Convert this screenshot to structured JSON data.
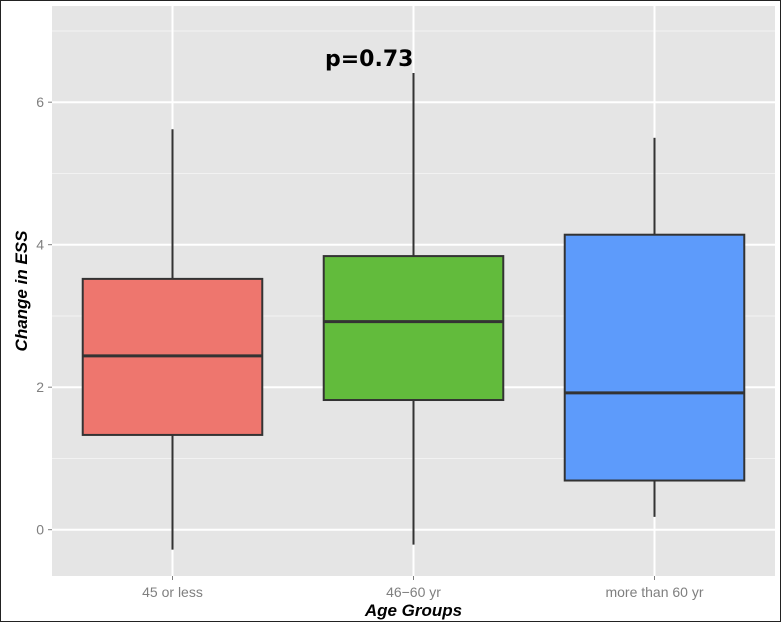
{
  "chart_data": {
    "type": "box",
    "xlabel": "Age Groups",
    "ylabel": "Change in ESS",
    "ylim": [
      -0.65,
      7.35
    ],
    "yticks": [
      0,
      2,
      4,
      6
    ],
    "grid": true,
    "annotation": "p=0.73",
    "categories": [
      "45 or less",
      "46−60 yr",
      "more than 60 yr"
    ],
    "boxes": [
      {
        "category": "45 or less",
        "min": -0.28,
        "q1": 1.33,
        "median": 2.44,
        "q3": 3.52,
        "max": 5.62,
        "color": "#ee766e"
      },
      {
        "category": "46−60 yr",
        "min": -0.21,
        "q1": 1.82,
        "median": 2.92,
        "q3": 3.84,
        "max": 6.41,
        "color": "#62bb3c"
      },
      {
        "category": "more than 60 yr",
        "min": 0.18,
        "q1": 0.69,
        "median": 1.92,
        "q3": 4.14,
        "max": 5.5,
        "color": "#5d9bfb"
      }
    ]
  }
}
